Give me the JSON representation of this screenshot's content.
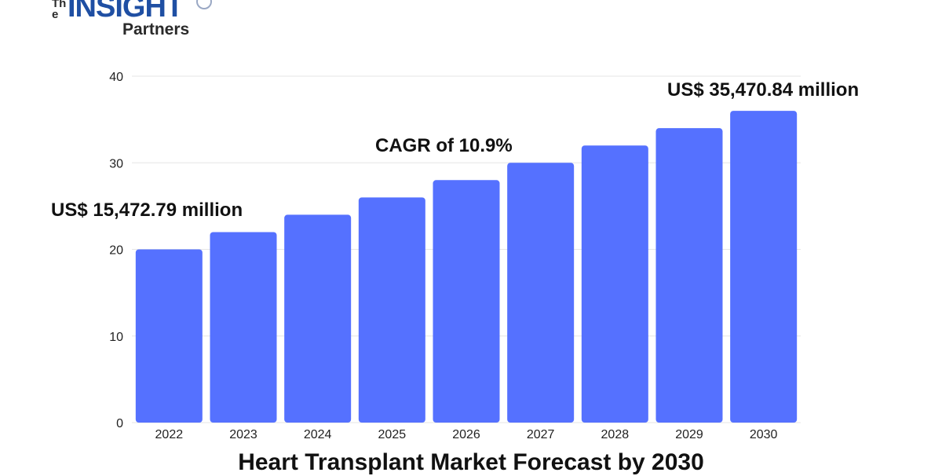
{
  "logo": {
    "the": "The",
    "insight": "INSIGHT",
    "partners": "Partners"
  },
  "annotations": {
    "start": "US$ 15,472.79 million",
    "cagr": "CAGR of 10.9%",
    "end": "US$ 35,470.84 million"
  },
  "chart_data": {
    "type": "bar",
    "title": "Heart Transplant Market Forecast by 2030",
    "xlabel": "",
    "ylabel": "",
    "categories": [
      "2022",
      "2023",
      "2024",
      "2025",
      "2026",
      "2027",
      "2028",
      "2029",
      "2030"
    ],
    "values": [
      20,
      22,
      24,
      26,
      28,
      30,
      32,
      34,
      36
    ],
    "ylim": [
      0,
      40
    ],
    "yticks": [
      "0",
      "10",
      "20",
      "30",
      "40"
    ],
    "grid": true,
    "bar_color": "#5571ff",
    "grid_color": "#e6e6e6"
  }
}
